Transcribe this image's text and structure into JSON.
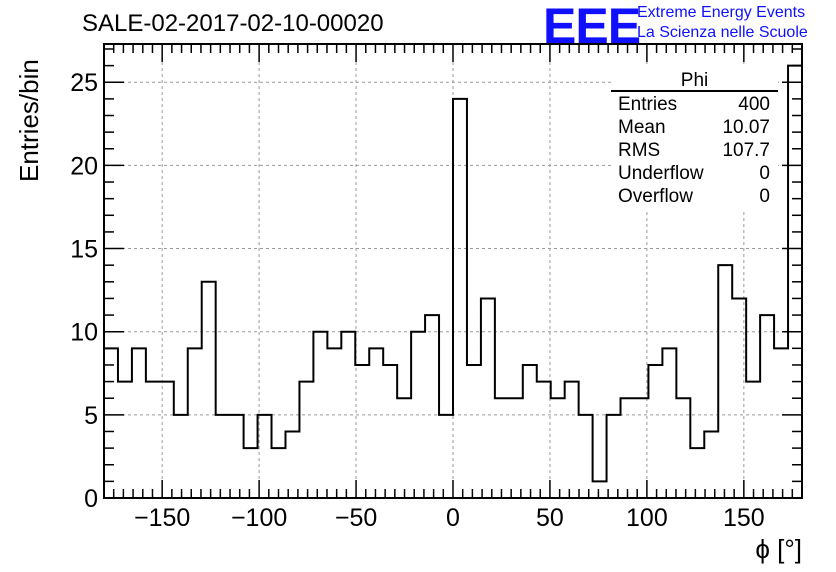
{
  "page": {
    "title": "SALE-02-2017-02-10-00020",
    "logo_text": "EEE",
    "brand_line1": "Extreme Energy Events",
    "brand_line2": "La Scienza nelle Scuole",
    "brand_color": "#1010ff"
  },
  "stats": {
    "name": "Phi",
    "rows": [
      {
        "label": "Entries",
        "value": "400"
      },
      {
        "label": "Mean",
        "value": "10.07"
      },
      {
        "label": "RMS",
        "value": "107.7"
      },
      {
        "label": "Underflow",
        "value": "0"
      },
      {
        "label": "Overflow",
        "value": "0"
      }
    ]
  },
  "chart_data": {
    "type": "histogram",
    "title": "SALE-02-2017-02-10-00020",
    "xlabel": "ϕ [°]",
    "ylabel": "Entries/bin",
    "xlim": [
      -180,
      180
    ],
    "ylim": [
      0,
      27.3
    ],
    "bin_width": 7.2,
    "bin_edges_start": -180,
    "values": [
      9,
      7,
      9,
      7,
      7,
      5,
      9,
      13,
      5,
      5,
      3,
      5,
      3,
      4,
      7,
      10,
      9,
      10,
      8,
      9,
      8,
      6,
      10,
      11,
      5,
      24,
      8,
      12,
      6,
      6,
      8,
      7,
      6,
      7,
      5,
      1,
      5,
      6,
      6,
      8,
      9,
      6,
      3,
      4,
      14,
      12,
      7,
      11,
      9,
      26
    ],
    "x_ticks": [
      -150,
      -100,
      -50,
      0,
      50,
      100,
      150
    ],
    "x_tick_labels": [
      "−150",
      "−100",
      "−50",
      "0",
      "50",
      "100",
      "150"
    ],
    "y_ticks": [
      0,
      5,
      10,
      15,
      20,
      25
    ],
    "y_tick_labels": [
      "0",
      "5",
      "10",
      "15",
      "20",
      "25"
    ],
    "grid": true,
    "line_color": "#000000"
  }
}
